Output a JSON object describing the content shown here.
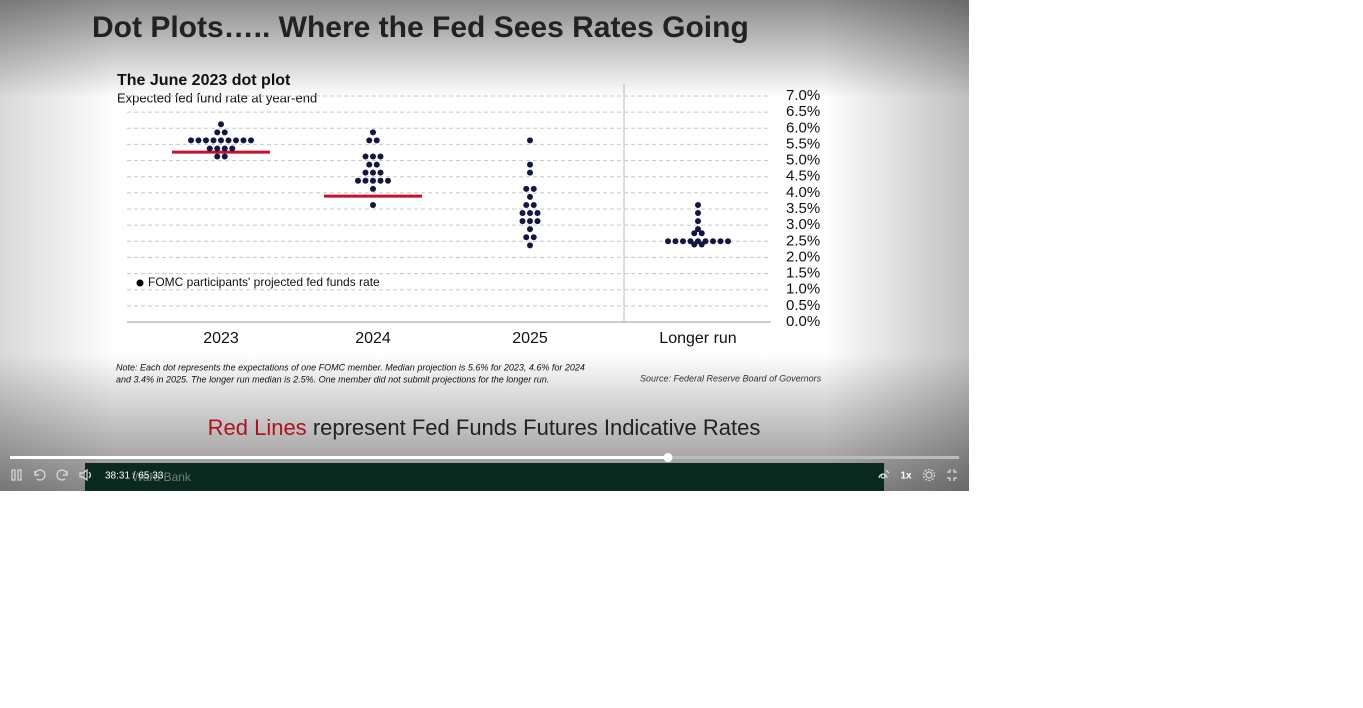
{
  "slide": {
    "title": "Dot Plots….. Where the Fed Sees Rates Going",
    "note_lines": [
      "Note: Each dot represents the expectations of one FOMC member. Median projection is 5.6% for 2023, 4.6% for 2024",
      "and 3.4% in 2025. The longer run median is 2.5%. One member did not submit projections for the longer run."
    ],
    "source": "Source: Federal Reserve Board of Governors",
    "caption_highlight": "Red Lines",
    "caption_rest": "represent Fed Funds Futures Indicative Rates"
  },
  "chart_data": {
    "type": "dot",
    "title": "The June 2023 dot plot",
    "subtitle": "Expected fed fund rate at year-end",
    "categories": [
      "2023",
      "2024",
      "2025",
      "Longer run"
    ],
    "dots": [
      [
        6.125,
        5.875,
        5.875,
        5.625,
        5.625,
        5.625,
        5.625,
        5.625,
        5.625,
        5.625,
        5.625,
        5.625,
        5.375,
        5.375,
        5.375,
        5.375,
        5.125,
        5.125
      ],
      [
        5.875,
        5.625,
        5.625,
        5.125,
        5.125,
        5.125,
        4.875,
        4.875,
        4.625,
        4.625,
        4.625,
        4.375,
        4.375,
        4.375,
        4.375,
        4.375,
        4.125,
        3.625
      ],
      [
        5.625,
        4.875,
        4.625,
        4.125,
        4.125,
        3.875,
        3.625,
        3.625,
        3.375,
        3.375,
        3.375,
        3.125,
        3.125,
        3.125,
        2.875,
        2.625,
        2.625,
        2.375
      ],
      [
        3.625,
        3.375,
        3.125,
        2.875,
        2.75,
        2.75,
        2.5,
        2.5,
        2.5,
        2.5,
        2.5,
        2.5,
        2.5,
        2.5,
        2.5,
        2.4,
        2.4
      ]
    ],
    "futures_lines": [
      5.26,
      3.9,
      null,
      null
    ],
    "legend": "FOMC participants' projected fed funds rate",
    "ylim": [
      0,
      7
    ],
    "yticks": [
      {
        "value": 0,
        "label": "0.0%"
      },
      {
        "value": 0.5,
        "label": "0.5%"
      },
      {
        "value": 1,
        "label": "1.0%"
      },
      {
        "value": 1.5,
        "label": "1.5%"
      },
      {
        "value": 2,
        "label": "2.0%"
      },
      {
        "value": 2.5,
        "label": "2.5%"
      },
      {
        "value": 3,
        "label": "3.0%"
      },
      {
        "value": 3.5,
        "label": "3.5%"
      },
      {
        "value": 4,
        "label": "4.0%"
      },
      {
        "value": 4.5,
        "label": "4.5%"
      },
      {
        "value": 5,
        "label": "5.0%"
      },
      {
        "value": 5.5,
        "label": "5.5%"
      },
      {
        "value": 6,
        "label": "6.0%"
      },
      {
        "value": 6.5,
        "label": "6.5%"
      },
      {
        "value": 7,
        "label": "7.0%"
      }
    ],
    "grid": true,
    "dot_color": "#121545",
    "line_color": "#c8102e"
  },
  "player": {
    "time": "38:31 / 65:33",
    "watermark": "Ward Bank",
    "speed": "1x"
  }
}
